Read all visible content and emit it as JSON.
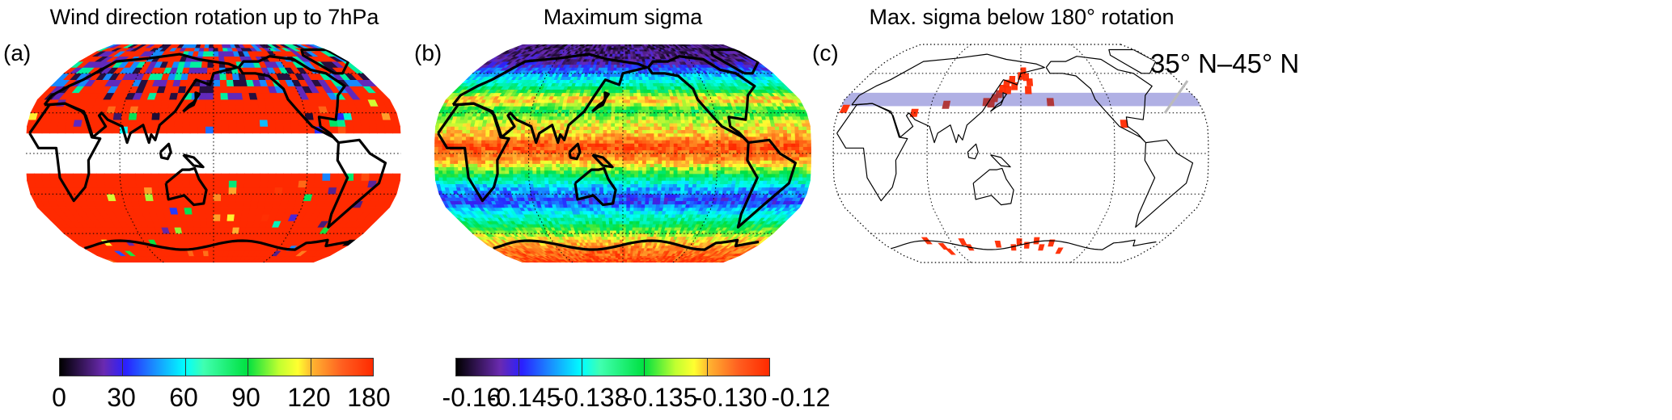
{
  "projection": "Robinson",
  "central_longitude": 160,
  "colormap": [
    "#000000",
    "#6a2ab0",
    "#2a20ff",
    "#00ffff",
    "#00e040",
    "#ffff30",
    "#ffb030",
    "#ff2a00"
  ],
  "panels": [
    {
      "label": "(a)",
      "title": "Wind direction rotation up to 7hPa",
      "colorbar": {
        "ticks": [
          "0",
          "30",
          "60",
          "90",
          "120",
          "180"
        ]
      }
    },
    {
      "label": "(b)",
      "title": "Maximum sigma",
      "colorbar": {
        "ticks": [
          "-0.16",
          "-0.145",
          "-0.138",
          "-0.135",
          "-0.130",
          "-0.12"
        ]
      }
    },
    {
      "label": "(c)",
      "title": "Max. sigma below 180° rotation",
      "band": {
        "label": "35° N–45° N",
        "lat_range": [
          35,
          45
        ],
        "color": "#b0b0e4"
      },
      "highlight_color": "#ff2a00",
      "red_cells_lonlat": [
        [
          125,
          38
        ],
        [
          130,
          37
        ],
        [
          133,
          41
        ],
        [
          137,
          44
        ],
        [
          140,
          48
        ],
        [
          144,
          52
        ],
        [
          150,
          55
        ],
        [
          146,
          47
        ],
        [
          153,
          50
        ],
        [
          160,
          58
        ],
        [
          163,
          62
        ],
        [
          166,
          57
        ],
        [
          170,
          53
        ],
        [
          168,
          47
        ],
        [
          190,
          38
        ],
        [
          -15,
          33
        ],
        [
          55,
          30
        ],
        [
          85,
          36
        ],
        [
          -100,
          22
        ],
        [
          40,
          -66
        ],
        [
          55,
          -71
        ],
        [
          58,
          -76
        ],
        [
          85,
          -67
        ],
        [
          90,
          -72
        ],
        [
          130,
          -69
        ],
        [
          150,
          -72
        ],
        [
          158,
          -67
        ],
        [
          168,
          -70
        ],
        [
          180,
          -66
        ],
        [
          188,
          -72
        ],
        [
          200,
          -68
        ],
        [
          215,
          -75
        ]
      ]
    }
  ]
}
